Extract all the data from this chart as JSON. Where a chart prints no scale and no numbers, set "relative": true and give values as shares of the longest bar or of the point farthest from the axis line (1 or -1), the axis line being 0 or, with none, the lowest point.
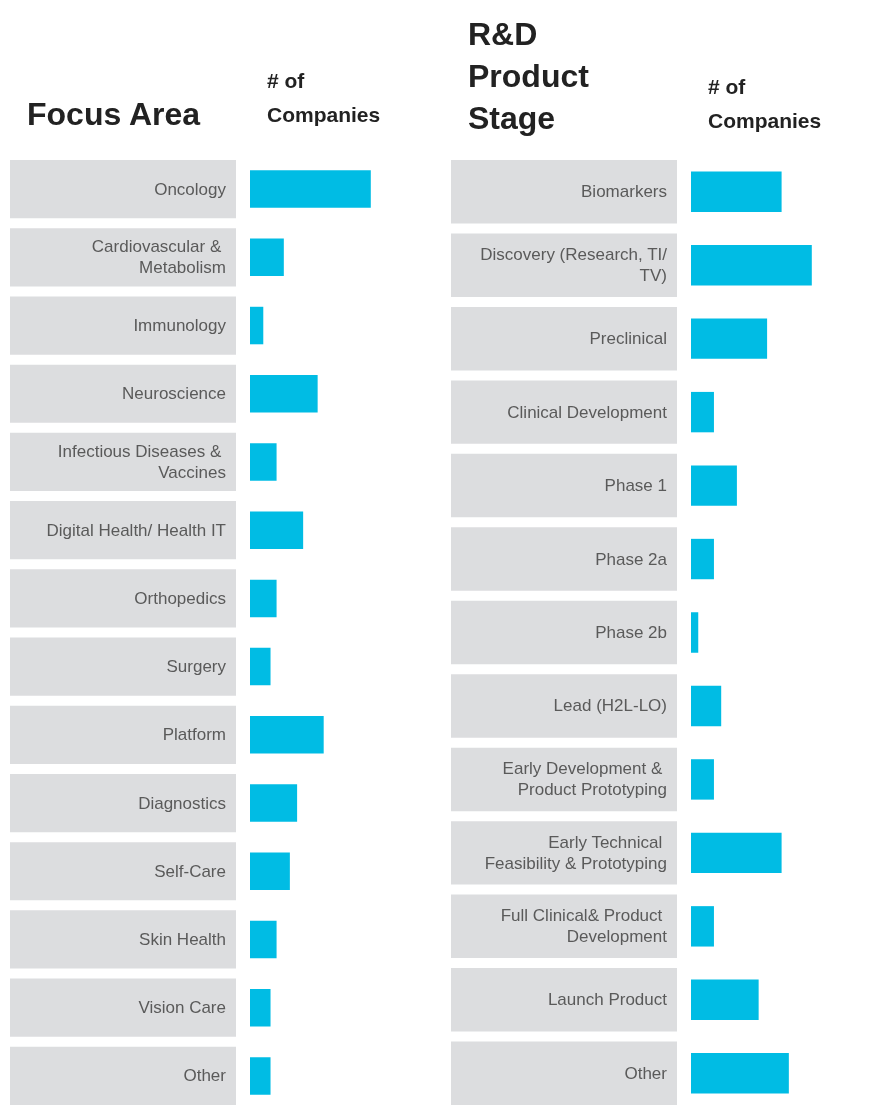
{
  "chart_data": [
    {
      "type": "bar",
      "orientation": "horizontal",
      "relative": true,
      "title": "Focus Area",
      "xlabel": "# of Companies",
      "categories": [
        "Oncology",
        "Cardiovascular & Metabolism",
        "Immunology",
        "Neuroscience",
        "Infectious Diseases & Vaccines",
        "Digital Health/ Health IT",
        "Orthopedics",
        "Surgery",
        "Platform",
        "Diagnostics",
        "Self-Care",
        "Skin Health",
        "Vision Care",
        "Other"
      ],
      "series": [
        {
          "color": "#00bce4",
          "values": [
            1,
            0.28,
            0.11,
            0.56,
            0.22,
            0.44,
            0.22,
            0.17,
            0.61,
            0.39,
            0.33,
            0.22,
            0.17,
            0.17
          ]
        }
      ]
    },
    {
      "type": "bar",
      "orientation": "horizontal",
      "relative": true,
      "title": "R&D Product Stage",
      "xlabel": "# of Companies",
      "categories": [
        "Biomarkers",
        "Discovery (Research, TI/TV)",
        "Preclinical",
        "Clinical Development",
        "Phase 1",
        "Phase 2a",
        "Phase 2b",
        "Lead (H2L-LO)",
        "Early Development & Product Prototyping",
        "Early Technical Feasibility & Prototyping",
        "Full Clinical& Product Development",
        "Launch Product",
        "Other"
      ],
      "series": [
        {
          "color": "#00bce4",
          "values": [
            0.75,
            1,
            0.63,
            0.19,
            0.38,
            0.19,
            0.06,
            0.25,
            0.19,
            0.75,
            0.19,
            0.56,
            0.81
          ]
        }
      ]
    }
  ]
}
